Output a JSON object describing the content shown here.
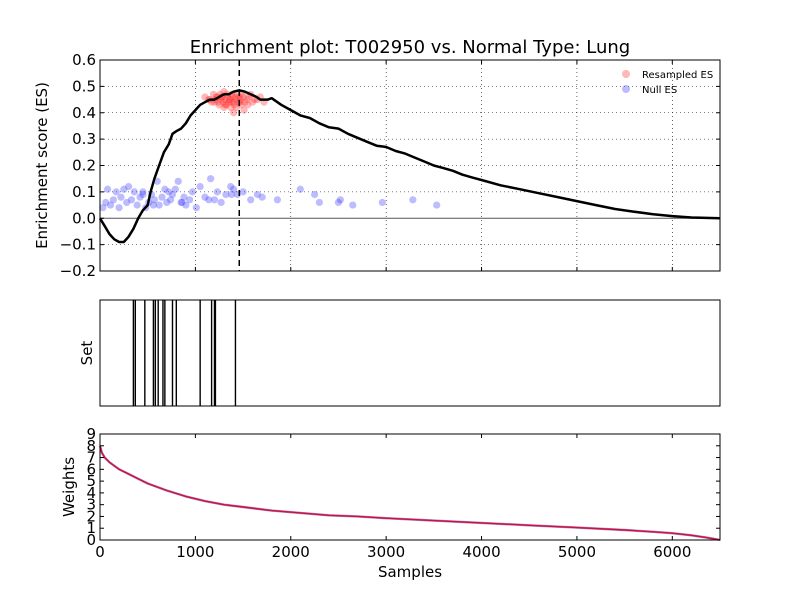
{
  "title": "Enrichment plot: T002950 vs. Normal Type: Lung",
  "chart_data": [
    {
      "type": "line",
      "panel": "enrichment",
      "title": "Enrichment plot: T002950 vs. Normal Type: Lung",
      "ylabel": "Enrichment score (ES)",
      "xlim": [
        0,
        6500
      ],
      "ylim": [
        -0.2,
        0.6
      ],
      "yticks": [
        -0.2,
        -0.1,
        0.0,
        0.1,
        0.2,
        0.3,
        0.4,
        0.5,
        0.6
      ],
      "ytick_labels": [
        "−0.2",
        "−0.1",
        "0.0",
        "0.1",
        "0.2",
        "0.3",
        "0.4",
        "0.5",
        "0.6"
      ],
      "xticks": [
        0,
        1000,
        2000,
        3000,
        4000,
        5000,
        6000
      ],
      "grid": true,
      "legend_position": "top-right",
      "peak_x": 1460,
      "colors": {
        "line": "#000000",
        "resampled": "#ff3030",
        "null": "#4040ff",
        "grid": "#000000"
      },
      "series": [
        {
          "name": "",
          "kind": "line",
          "x": [
            0,
            50,
            100,
            150,
            200,
            250,
            300,
            350,
            400,
            450,
            500,
            530,
            570,
            620,
            670,
            720,
            760,
            800,
            850,
            900,
            950,
            1000,
            1050,
            1100,
            1150,
            1200,
            1250,
            1300,
            1350,
            1400,
            1460,
            1520,
            1580,
            1640,
            1680,
            1720,
            1760,
            1800,
            1900,
            2000,
            2100,
            2200,
            2300,
            2400,
            2500,
            2600,
            2700,
            2800,
            2900,
            3000,
            3100,
            3200,
            3300,
            3400,
            3500,
            3600,
            3700,
            3800,
            3900,
            4000,
            4200,
            4400,
            4600,
            4800,
            5000,
            5200,
            5400,
            5600,
            5800,
            6000,
            6200,
            6400,
            6500
          ],
          "y": [
            0.0,
            -0.03,
            -0.06,
            -0.08,
            -0.09,
            -0.09,
            -0.07,
            -0.04,
            0.0,
            0.03,
            0.05,
            0.1,
            0.15,
            0.2,
            0.25,
            0.28,
            0.32,
            0.33,
            0.34,
            0.36,
            0.39,
            0.41,
            0.43,
            0.44,
            0.45,
            0.45,
            0.46,
            0.47,
            0.47,
            0.48,
            0.485,
            0.48,
            0.47,
            0.46,
            0.45,
            0.45,
            0.45,
            0.455,
            0.43,
            0.41,
            0.39,
            0.38,
            0.36,
            0.345,
            0.34,
            0.32,
            0.305,
            0.29,
            0.275,
            0.27,
            0.255,
            0.245,
            0.23,
            0.215,
            0.2,
            0.19,
            0.18,
            0.165,
            0.155,
            0.145,
            0.125,
            0.11,
            0.095,
            0.08,
            0.065,
            0.05,
            0.035,
            0.025,
            0.015,
            0.008,
            0.003,
            0.001,
            0.0
          ]
        },
        {
          "name": "Resampled ES",
          "kind": "scatter",
          "x": [
            1100,
            1140,
            1170,
            1190,
            1210,
            1220,
            1240,
            1250,
            1260,
            1270,
            1280,
            1290,
            1300,
            1310,
            1320,
            1330,
            1340,
            1350,
            1360,
            1370,
            1380,
            1390,
            1400,
            1410,
            1420,
            1430,
            1440,
            1450,
            1460,
            1470,
            1480,
            1490,
            1500,
            1520,
            1540,
            1560,
            1580,
            1600,
            1620,
            1650,
            1680,
            1720,
            1150,
            1200,
            1280,
            1320,
            1360,
            1400,
            1430,
            1470,
            1510,
            1550,
            1230,
            1300,
            1380
          ],
          "y": [
            0.46,
            0.45,
            0.44,
            0.47,
            0.45,
            0.46,
            0.44,
            0.43,
            0.47,
            0.45,
            0.46,
            0.44,
            0.48,
            0.45,
            0.43,
            0.47,
            0.46,
            0.44,
            0.45,
            0.42,
            0.47,
            0.46,
            0.44,
            0.43,
            0.46,
            0.45,
            0.47,
            0.44,
            0.46,
            0.45,
            0.43,
            0.47,
            0.46,
            0.44,
            0.45,
            0.46,
            0.47,
            0.44,
            0.45,
            0.45,
            0.46,
            0.44,
            0.45,
            0.44,
            0.46,
            0.43,
            0.45,
            0.4,
            0.42,
            0.44,
            0.41,
            0.43,
            0.46,
            0.42,
            0.44
          ]
        },
        {
          "name": "Null ES",
          "kind": "scatter",
          "x": [
            30,
            60,
            80,
            110,
            140,
            170,
            200,
            220,
            250,
            280,
            300,
            330,
            360,
            390,
            420,
            450,
            480,
            510,
            540,
            570,
            600,
            620,
            650,
            680,
            700,
            720,
            740,
            760,
            790,
            820,
            850,
            880,
            900,
            940,
            970,
            1010,
            1050,
            1100,
            1140,
            1160,
            1200,
            1230,
            1270,
            1320,
            1370,
            1400,
            1440,
            1500,
            1580,
            1650,
            1700,
            1860,
            2100,
            2250,
            2300,
            2500,
            2520,
            2650,
            2960,
            3280,
            3530,
            450,
            560,
            860,
            1380
          ],
          "y": [
            0.04,
            0.06,
            0.11,
            0.05,
            0.07,
            0.1,
            0.04,
            0.08,
            0.11,
            0.06,
            0.12,
            0.07,
            0.1,
            0.05,
            0.08,
            0.1,
            0.04,
            0.06,
            0.09,
            0.07,
            0.14,
            0.05,
            0.08,
            0.11,
            0.06,
            0.1,
            0.07,
            0.09,
            0.11,
            0.14,
            0.06,
            0.08,
            0.05,
            0.07,
            0.1,
            0.04,
            0.12,
            0.08,
            0.07,
            0.15,
            0.07,
            0.1,
            0.06,
            0.09,
            0.12,
            0.11,
            0.09,
            0.1,
            0.07,
            0.09,
            0.08,
            0.07,
            0.11,
            0.09,
            0.06,
            0.06,
            0.07,
            0.05,
            0.06,
            0.07,
            0.05,
            0.09,
            0.05,
            0.06,
            0.09
          ]
        }
      ]
    },
    {
      "type": "barcode",
      "panel": "set",
      "ylabel": "Set",
      "xlim": [
        0,
        6500
      ],
      "hits": [
        350,
        370,
        470,
        560,
        580,
        610,
        660,
        680,
        760,
        800,
        1050,
        1170,
        1200,
        1210,
        1420
      ]
    },
    {
      "type": "line",
      "panel": "weights",
      "xlabel": "Samples",
      "ylabel": "Weights",
      "xlim": [
        0,
        6500
      ],
      "ylim": [
        0,
        9
      ],
      "yticks": [
        0,
        1,
        2,
        3,
        4,
        5,
        6,
        7,
        8,
        9
      ],
      "xticks": [
        0,
        1000,
        2000,
        3000,
        4000,
        5000,
        6000
      ],
      "colors": {
        "line": "#cc1040",
        "line2": "#6a1f8a"
      },
      "series": [
        {
          "name": "",
          "x": [
            0,
            20,
            50,
            100,
            150,
            200,
            300,
            400,
            500,
            700,
            900,
            1100,
            1300,
            1500,
            1800,
            2100,
            2400,
            2700,
            3000,
            3500,
            4000,
            4500,
            5000,
            5500,
            5800,
            6000,
            6200,
            6350,
            6450,
            6500
          ],
          "y": [
            8.0,
            7.4,
            7.0,
            6.6,
            6.3,
            6.0,
            5.6,
            5.2,
            4.8,
            4.2,
            3.7,
            3.3,
            3.0,
            2.8,
            2.5,
            2.3,
            2.1,
            2.0,
            1.85,
            1.65,
            1.45,
            1.25,
            1.05,
            0.85,
            0.7,
            0.58,
            0.4,
            0.22,
            0.08,
            0.0
          ]
        }
      ]
    }
  ],
  "legend": [
    {
      "label": "Resampled ES",
      "color": "#ff3030"
    },
    {
      "label": "Null ES",
      "color": "#4040ff"
    }
  ]
}
